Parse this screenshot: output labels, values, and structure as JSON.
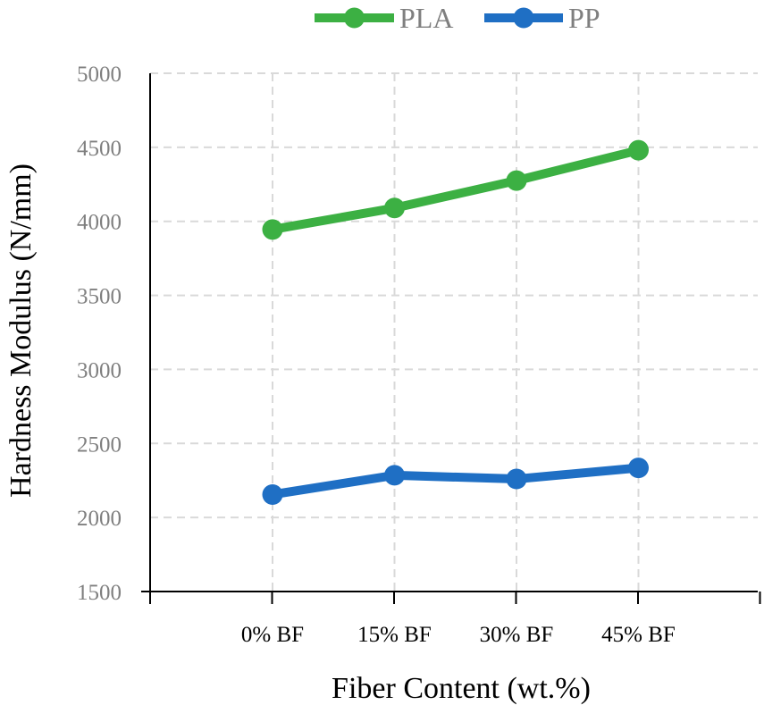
{
  "chart_data": {
    "type": "line",
    "categories": [
      "0% BF",
      "15% BF",
      "30% BF",
      "45% BF"
    ],
    "series": [
      {
        "name": "PLA",
        "color": "#3cb043",
        "values": [
          3945,
          4090,
          4275,
          4480
        ]
      },
      {
        "name": "PP",
        "color": "#1f6fc4",
        "values": [
          2155,
          2285,
          2260,
          2335
        ]
      }
    ],
    "xlabel": "Fiber Content (wt.%)",
    "ylabel": "Hardness Modulus (N/mm)",
    "ylim": [
      1500,
      5000
    ],
    "yticks": [
      "1500",
      "2000",
      "2500",
      "3000",
      "3500",
      "4000",
      "4500",
      "5000"
    ],
    "grid": true,
    "legend_position": "top"
  }
}
